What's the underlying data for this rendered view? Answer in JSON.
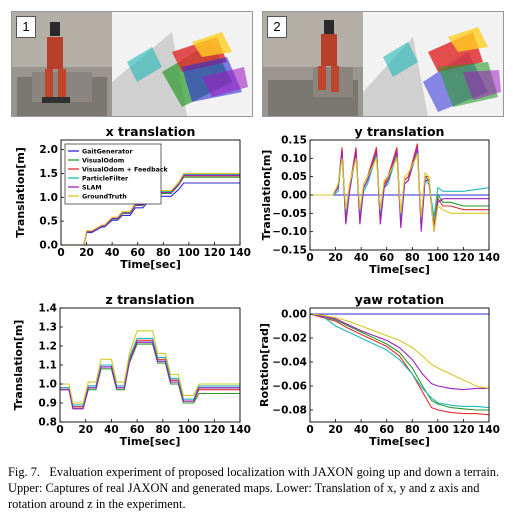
{
  "photos": [
    {
      "badge": "1"
    },
    {
      "badge": "2"
    }
  ],
  "legend": [
    {
      "name": "GaitGenerator",
      "color": "#2b2bd8"
    },
    {
      "name": "VisualOdom",
      "color": "#2a9a2a"
    },
    {
      "name": "VisualOdom + Feedback",
      "color": "#e03030"
    },
    {
      "name": "ParticleFilter",
      "color": "#20b8b8"
    },
    {
      "name": "SLAM",
      "color": "#a020c0"
    },
    {
      "name": "GroundTruth",
      "color": "#d8c820"
    }
  ],
  "caption": {
    "label": "Fig. 7.",
    "text": "Evaluation experiment of proposed localization with JAXON going up and down a terrain. Upper: Captures of real JAXON and generated maps. Lower: Translation of x, y and z axis and rotation around z in the experiment."
  },
  "chart_data": [
    {
      "type": "line",
      "title": "x translation",
      "xlabel": "Time[sec]",
      "ylabel": "Translation[m]",
      "xlim": [
        0,
        140
      ],
      "ylim": [
        0,
        2.2
      ],
      "xticks": [
        0,
        20,
        40,
        60,
        80,
        100,
        120,
        140
      ],
      "yticks": [
        0.0,
        0.5,
        1.0,
        1.5,
        2.0
      ],
      "ytick_labels": [
        "0.0",
        "0.5",
        "1.0",
        "1.5",
        "2.0"
      ],
      "legend_position": "top-left",
      "x": [
        0,
        18,
        20,
        24,
        32,
        34,
        40,
        44,
        48,
        54,
        58,
        64,
        68,
        74,
        78,
        86,
        92,
        96,
        100,
        120,
        140
      ],
      "series": [
        {
          "name": "GaitGenerator",
          "color": "#2b2bd8",
          "values": [
            0.0,
            0.0,
            0.26,
            0.26,
            0.38,
            0.38,
            0.52,
            0.52,
            0.62,
            0.62,
            0.78,
            0.78,
            0.9,
            0.9,
            1.02,
            1.02,
            1.16,
            1.3,
            1.3,
            1.3,
            1.3
          ]
        },
        {
          "name": "VisualOdom",
          "color": "#2a9a2a",
          "values": [
            0.0,
            0.0,
            0.28,
            0.28,
            0.4,
            0.4,
            0.55,
            0.55,
            0.66,
            0.66,
            0.83,
            0.83,
            0.95,
            0.95,
            1.08,
            1.08,
            1.25,
            1.42,
            1.42,
            1.42,
            1.42
          ]
        },
        {
          "name": "VisualOdom + Feedback",
          "color": "#e03030",
          "values": [
            0.0,
            0.0,
            0.28,
            0.28,
            0.41,
            0.41,
            0.56,
            0.56,
            0.67,
            0.67,
            0.84,
            0.84,
            0.97,
            0.97,
            1.1,
            1.1,
            1.27,
            1.45,
            1.45,
            1.45,
            1.45
          ]
        },
        {
          "name": "ParticleFilter",
          "color": "#20b8b8",
          "values": [
            0.0,
            0.0,
            0.29,
            0.29,
            0.41,
            0.41,
            0.57,
            0.57,
            0.68,
            0.68,
            0.85,
            0.85,
            0.98,
            0.98,
            1.12,
            1.12,
            1.29,
            1.48,
            1.48,
            1.48,
            1.48
          ]
        },
        {
          "name": "SLAM",
          "color": "#a020c0",
          "values": [
            0.0,
            0.0,
            0.28,
            0.28,
            0.4,
            0.4,
            0.56,
            0.56,
            0.67,
            0.67,
            0.84,
            0.84,
            0.97,
            0.97,
            1.1,
            1.1,
            1.27,
            1.46,
            1.46,
            1.46,
            1.46
          ]
        },
        {
          "name": "GroundTruth",
          "color": "#d8c820",
          "values": [
            0.0,
            0.0,
            0.3,
            0.3,
            0.42,
            0.42,
            0.58,
            0.58,
            0.7,
            0.7,
            0.87,
            0.87,
            1.0,
            1.0,
            1.14,
            1.14,
            1.31,
            1.5,
            1.5,
            1.5,
            1.5
          ]
        }
      ]
    },
    {
      "type": "line",
      "title": "y translation",
      "xlabel": "Time[sec]",
      "ylabel": "Translation[m]",
      "xlim": [
        0,
        140
      ],
      "ylim": [
        -0.15,
        0.15
      ],
      "xticks": [
        0,
        20,
        40,
        60,
        80,
        100,
        120,
        140
      ],
      "yticks": [
        -0.15,
        -0.1,
        -0.05,
        0.0,
        0.05,
        0.1,
        0.15
      ],
      "ytick_labels": [
        "−0.15",
        "−0.10",
        "−0.05",
        "0.00",
        "0.05",
        "0.10",
        "0.15"
      ],
      "x": [
        0,
        18,
        22,
        25,
        28,
        31,
        36,
        39,
        42,
        45,
        52,
        55,
        58,
        61,
        68,
        71,
        74,
        77,
        84,
        87,
        90,
        93,
        97,
        100,
        104,
        110,
        120,
        140
      ],
      "series": [
        {
          "name": "GaitGenerator",
          "color": "#2b2bd8",
          "values": [
            0.0,
            0.0,
            0.0,
            0.0,
            0.0,
            0.0,
            0.0,
            0.0,
            0.0,
            0.0,
            0.0,
            0.0,
            0.0,
            0.0,
            0.0,
            0.0,
            0.0,
            0.0,
            0.0,
            0.0,
            0.0,
            0.0,
            0.0,
            0.0,
            0.0,
            0.0,
            0.0,
            0.0
          ]
        },
        {
          "name": "VisualOdom",
          "color": "#2a9a2a",
          "values": [
            0.0,
            0.0,
            0.02,
            0.12,
            -0.06,
            0.02,
            0.12,
            -0.06,
            0.02,
            0.04,
            0.12,
            -0.06,
            0.03,
            0.04,
            0.12,
            -0.07,
            0.04,
            0.05,
            0.13,
            -0.08,
            0.05,
            0.04,
            -0.08,
            0.0,
            -0.02,
            -0.02,
            -0.03,
            -0.03
          ]
        },
        {
          "name": "VisualOdom + Feedback",
          "color": "#e03030",
          "values": [
            0.0,
            0.0,
            0.02,
            0.13,
            -0.07,
            0.02,
            0.13,
            -0.07,
            0.03,
            0.05,
            0.13,
            -0.07,
            0.03,
            0.05,
            0.13,
            -0.08,
            0.04,
            0.05,
            0.14,
            -0.09,
            0.05,
            0.05,
            -0.09,
            -0.01,
            -0.03,
            -0.03,
            -0.04,
            -0.04
          ]
        },
        {
          "name": "ParticleFilter",
          "color": "#20b8b8",
          "values": [
            0.0,
            0.0,
            0.01,
            0.11,
            -0.05,
            0.01,
            0.11,
            -0.05,
            0.01,
            0.03,
            0.11,
            -0.05,
            0.02,
            0.03,
            0.11,
            -0.06,
            0.03,
            0.04,
            0.12,
            -0.07,
            0.04,
            0.03,
            -0.06,
            0.02,
            0.01,
            0.01,
            0.01,
            0.02
          ]
        },
        {
          "name": "SLAM",
          "color": "#a020c0",
          "values": [
            0.0,
            0.0,
            0.02,
            0.12,
            -0.08,
            0.01,
            0.12,
            -0.08,
            0.02,
            0.04,
            0.12,
            -0.08,
            0.02,
            0.04,
            0.12,
            -0.09,
            0.03,
            0.04,
            0.13,
            -0.1,
            0.04,
            0.04,
            -0.1,
            -0.02,
            -0.01,
            -0.01,
            -0.01,
            -0.01
          ]
        },
        {
          "name": "GroundTruth",
          "color": "#d8c820",
          "values": [
            0.0,
            0.0,
            0.03,
            0.1,
            -0.04,
            0.03,
            0.1,
            -0.04,
            0.03,
            0.05,
            0.1,
            -0.04,
            0.04,
            0.05,
            0.1,
            -0.05,
            0.05,
            0.06,
            0.11,
            -0.06,
            0.06,
            0.05,
            -0.1,
            -0.03,
            -0.04,
            -0.05,
            -0.05,
            -0.05
          ]
        }
      ]
    },
    {
      "type": "line",
      "title": "z translation",
      "xlabel": "Time[sec]",
      "ylabel": "Translation[m]",
      "xlim": [
        0,
        140
      ],
      "ylim": [
        0.8,
        1.4
      ],
      "xticks": [
        0,
        20,
        40,
        60,
        80,
        100,
        120,
        140
      ],
      "yticks": [
        0.8,
        0.9,
        1.0,
        1.1,
        1.2,
        1.3,
        1.4
      ],
      "ytick_labels": [
        "0.8",
        "0.9",
        "1.0",
        "1.1",
        "1.2",
        "1.3",
        "1.4"
      ],
      "x": [
        0,
        7,
        10,
        18,
        22,
        28,
        32,
        40,
        44,
        50,
        54,
        60,
        66,
        72,
        76,
        82,
        86,
        92,
        96,
        104,
        108,
        140
      ],
      "series": [
        {
          "name": "GaitGenerator",
          "color": "#2b2bd8",
          "values": [
            0.98,
            0.98,
            0.88,
            0.88,
            0.98,
            0.98,
            1.09,
            1.09,
            0.98,
            0.98,
            1.12,
            1.22,
            1.22,
            1.22,
            1.12,
            1.12,
            1.02,
            1.02,
            0.91,
            0.91,
            0.98,
            0.98
          ]
        },
        {
          "name": "VisualOdom",
          "color": "#2a9a2a",
          "values": [
            0.97,
            0.97,
            0.87,
            0.87,
            0.97,
            0.97,
            1.08,
            1.08,
            0.97,
            0.97,
            1.11,
            1.21,
            1.21,
            1.21,
            1.11,
            1.11,
            1.0,
            1.0,
            0.9,
            0.9,
            0.95,
            0.95
          ]
        },
        {
          "name": "VisualOdom + Feedback",
          "color": "#e03030",
          "values": [
            0.98,
            0.98,
            0.88,
            0.88,
            0.99,
            0.99,
            1.1,
            1.1,
            0.99,
            0.99,
            1.13,
            1.23,
            1.23,
            1.23,
            1.13,
            1.13,
            1.02,
            1.02,
            0.91,
            0.91,
            0.97,
            0.97
          ]
        },
        {
          "name": "ParticleFilter",
          "color": "#20b8b8",
          "values": [
            0.98,
            0.98,
            0.89,
            0.89,
            0.99,
            0.99,
            1.1,
            1.1,
            0.99,
            0.99,
            1.14,
            1.24,
            1.24,
            1.24,
            1.14,
            1.14,
            1.03,
            1.03,
            0.92,
            0.92,
            0.99,
            0.99
          ]
        },
        {
          "name": "SLAM",
          "color": "#a020c0",
          "values": [
            0.97,
            0.97,
            0.87,
            0.87,
            0.98,
            0.98,
            1.09,
            1.09,
            0.98,
            0.98,
            1.12,
            1.22,
            1.22,
            1.22,
            1.12,
            1.12,
            1.01,
            1.01,
            0.91,
            0.91,
            0.98,
            0.98
          ]
        },
        {
          "name": "GroundTruth",
          "color": "#d8c820",
          "values": [
            1.0,
            1.0,
            0.9,
            0.9,
            1.01,
            1.01,
            1.13,
            1.13,
            1.01,
            1.01,
            1.16,
            1.28,
            1.28,
            1.28,
            1.16,
            1.16,
            1.05,
            1.05,
            0.94,
            0.94,
            1.0,
            1.0
          ]
        }
      ]
    },
    {
      "type": "line",
      "title": "yaw rotation",
      "xlabel": "Time[sec]",
      "ylabel": "Rotation[rad]",
      "xlim": [
        0,
        140
      ],
      "ylim": [
        -0.09,
        0.005
      ],
      "xticks": [
        0,
        20,
        40,
        60,
        80,
        100,
        120,
        140
      ],
      "yticks": [
        -0.08,
        -0.06,
        -0.04,
        -0.02,
        0.0
      ],
      "ytick_labels": [
        "−0.08",
        "−0.06",
        "−0.04",
        "−0.02",
        "0.00"
      ],
      "x": [
        0,
        10,
        20,
        30,
        40,
        50,
        60,
        70,
        80,
        88,
        95,
        100,
        110,
        120,
        130,
        140
      ],
      "series": [
        {
          "name": "GaitGenerator",
          "color": "#2b2bd8",
          "values": [
            0.0,
            0.0,
            0.0,
            0.0,
            0.0,
            0.0,
            0.0,
            0.0,
            0.0,
            0.0,
            0.0,
            0.0,
            0.0,
            0.0,
            0.0,
            0.0
          ]
        },
        {
          "name": "VisualOdom",
          "color": "#2a9a2a",
          "values": [
            0.0,
            -0.002,
            -0.005,
            -0.01,
            -0.015,
            -0.02,
            -0.025,
            -0.032,
            -0.045,
            -0.06,
            -0.072,
            -0.075,
            -0.078,
            -0.079,
            -0.08,
            -0.08
          ]
        },
        {
          "name": "VisualOdom + Feedback",
          "color": "#e03030",
          "values": [
            0.0,
            -0.003,
            -0.006,
            -0.012,
            -0.017,
            -0.022,
            -0.027,
            -0.035,
            -0.05,
            -0.065,
            -0.078,
            -0.08,
            -0.082,
            -0.083,
            -0.083,
            -0.084
          ]
        },
        {
          "name": "ParticleFilter",
          "color": "#20b8b8",
          "values": [
            0.0,
            -0.002,
            -0.01,
            -0.015,
            -0.02,
            -0.025,
            -0.03,
            -0.038,
            -0.05,
            -0.062,
            -0.07,
            -0.074,
            -0.076,
            -0.077,
            -0.077,
            -0.078
          ]
        },
        {
          "name": "SLAM",
          "color": "#a020c0",
          "values": [
            0.0,
            -0.002,
            -0.004,
            -0.009,
            -0.014,
            -0.018,
            -0.022,
            -0.028,
            -0.038,
            -0.05,
            -0.058,
            -0.06,
            -0.062,
            -0.063,
            -0.062,
            -0.062
          ]
        },
        {
          "name": "GroundTruth",
          "color": "#d8c820",
          "values": [
            0.0,
            -0.001,
            -0.003,
            -0.006,
            -0.01,
            -0.014,
            -0.018,
            -0.022,
            -0.028,
            -0.035,
            -0.042,
            -0.045,
            -0.05,
            -0.055,
            -0.06,
            -0.062
          ]
        }
      ]
    }
  ]
}
